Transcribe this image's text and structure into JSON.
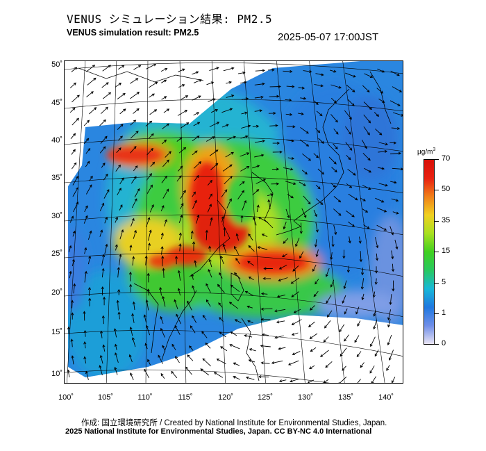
{
  "header": {
    "title_jp": "VENUS シミュレーション結果: PM2.5",
    "title_en": "VENUS simulation result: PM2.5",
    "timestamp": "2025-05-07 17:00JST"
  },
  "map": {
    "lat_labels": [
      "50˚",
      "45˚",
      "40˚",
      "35˚",
      "30˚",
      "25˚",
      "20˚",
      "15˚",
      "10˚"
    ],
    "lon_labels": [
      "100˚",
      "105˚",
      "110˚",
      "115˚",
      "120˚",
      "125˚",
      "130˚",
      "135˚",
      "140˚"
    ]
  },
  "colorbar": {
    "unit": "μg/m",
    "unit_sup": "3",
    "ticks": [
      "70",
      "50",
      "35",
      "15",
      "5",
      "1",
      "0"
    ],
    "colors": [
      "#e8e4f4",
      "#6f8ee8",
      "#1f78e0",
      "#18b8d8",
      "#28c860",
      "#40d020",
      "#a8e020",
      "#f0d020",
      "#f08018",
      "#e82010",
      "#d81008"
    ]
  },
  "footer": {
    "credit_line": "作成: 国立環境研究所 / Created by National Institute for Environmental Studies, Japan.",
    "copyright_line": "2025 National Institute for Environmental Studies, Japan. CC BY-NC 4.0 International"
  }
}
